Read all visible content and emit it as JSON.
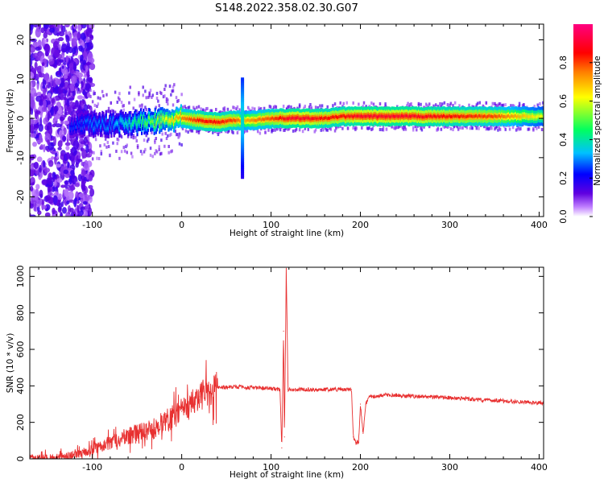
{
  "title": "S148.2022.358.02.30.G07",
  "chart_data": [
    {
      "type": "heatmap",
      "xlabel": "Height of straight line (km)",
      "ylabel": "Frequency (Hz)",
      "xlim": [
        -170,
        405
      ],
      "ylim": [
        -25,
        24
      ],
      "xticks": [
        -100,
        0,
        100,
        200,
        300,
        400
      ],
      "yticks": [
        -20,
        -10,
        0,
        10,
        20
      ],
      "colorbar": {
        "label": "Normalized spectral amplitude",
        "ticks": [
          0.0,
          0.2,
          0.4,
          0.6,
          0.8
        ],
        "range": [
          0,
          1
        ],
        "colors": [
          "#ffffff",
          "#c080ff",
          "#6000e0",
          "#0000ff",
          "#00c0ff",
          "#00ff60",
          "#ffff00",
          "#ff8000",
          "#ff0000",
          "#ff0080"
        ]
      },
      "ridge": {
        "x": [
          -120,
          -100,
          -80,
          -60,
          -40,
          -20,
          0,
          20,
          40,
          60,
          70,
          80,
          100,
          120,
          140,
          160,
          180,
          200,
          250,
          300,
          350,
          405
        ],
        "frequency": [
          -1.5,
          -1.5,
          -1.5,
          -1.0,
          -1.0,
          -0.5,
          0.0,
          -0.5,
          -1.0,
          -0.5,
          -0.5,
          -0.5,
          0.0,
          0.0,
          0.0,
          0.0,
          0.5,
          0.5,
          0.5,
          0.5,
          0.5,
          0.5
        ],
        "amplitude": [
          0.25,
          0.3,
          0.3,
          0.4,
          0.5,
          0.6,
          0.75,
          0.85,
          0.85,
          0.8,
          0.7,
          0.75,
          0.8,
          0.9,
          0.9,
          0.85,
          0.85,
          0.9,
          0.9,
          0.85,
          0.8,
          0.6
        ]
      },
      "spike": {
        "x": 68,
        "frequency_range": [
          -15,
          10
        ]
      }
    },
    {
      "type": "line",
      "xlabel": "Height of straight line (km)",
      "ylabel": "SNR (10 * v/v)",
      "xlim": [
        -170,
        405
      ],
      "ylim": [
        0,
        1050
      ],
      "xticks": [
        -100,
        0,
        100,
        200,
        300,
        400
      ],
      "yticks": [
        0,
        200,
        400,
        600,
        800,
        1000
      ],
      "color": "#e83030",
      "series": [
        {
          "x": [
            -170,
            -150,
            -130,
            -110,
            -90,
            -70,
            -50,
            -40,
            -30,
            -20,
            -10,
            0,
            10,
            20,
            30,
            40,
            60,
            80,
            100,
            110,
            112,
            114,
            115,
            117,
            119,
            130,
            150,
            170,
            190,
            192,
            195,
            198,
            200,
            203,
            206,
            210,
            230,
            250,
            300,
            350,
            405
          ],
          "y": [
            0,
            5,
            15,
            35,
            70,
            110,
            140,
            150,
            170,
            200,
            230,
            260,
            300,
            340,
            370,
            390,
            395,
            390,
            385,
            380,
            60,
            700,
            120,
            1050,
            380,
            380,
            380,
            380,
            380,
            120,
            90,
            90,
            300,
            140,
            300,
            340,
            350,
            345,
            335,
            320,
            305
          ]
        }
      ]
    }
  ]
}
